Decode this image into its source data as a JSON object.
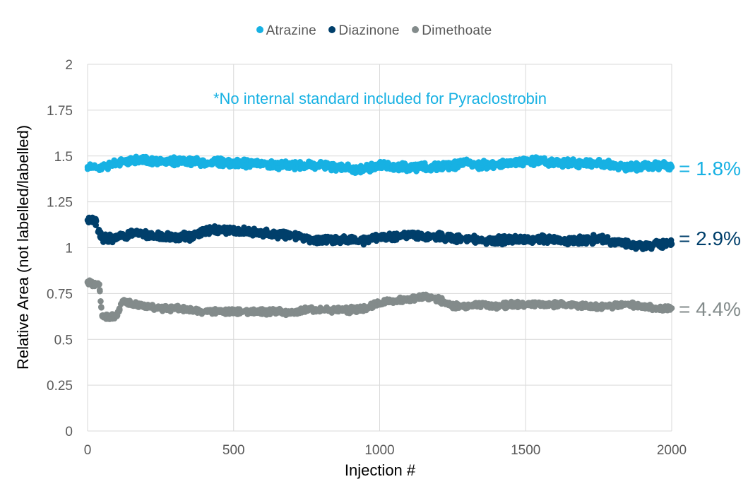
{
  "chart_data": {
    "type": "scatter",
    "xlabel": "Injection #",
    "ylabel": "Relative Area (not labelled/labelled)",
    "xlim": [
      0,
      2000
    ],
    "ylim": [
      0,
      2
    ],
    "x_ticks": [
      "0",
      "500",
      "1000",
      "1500",
      "2000"
    ],
    "y_ticks": [
      "0",
      "0.25",
      "0.5",
      "0.75",
      "1",
      "1.25",
      "1.5",
      "1.75",
      "2"
    ],
    "grid": "vertical and horizontal gridlines",
    "legend_position": "top",
    "annotation": "*No internal standard included for Pyraclostrobin",
    "series": [
      {
        "name": "Atrazine",
        "color": "#17b1e3",
        "rsd_label": "= 1.8%",
        "x": [
          0,
          50,
          100,
          150,
          200,
          250,
          300,
          350,
          400,
          450,
          500,
          550,
          600,
          650,
          700,
          750,
          800,
          850,
          900,
          950,
          1000,
          1050,
          1100,
          1150,
          1200,
          1250,
          1300,
          1350,
          1400,
          1450,
          1500,
          1550,
          1600,
          1650,
          1700,
          1750,
          1800,
          1850,
          1900,
          1950,
          2000
        ],
        "y": [
          1.44,
          1.44,
          1.46,
          1.48,
          1.48,
          1.47,
          1.47,
          1.47,
          1.46,
          1.47,
          1.46,
          1.46,
          1.46,
          1.45,
          1.45,
          1.45,
          1.45,
          1.44,
          1.43,
          1.43,
          1.45,
          1.44,
          1.44,
          1.44,
          1.44,
          1.45,
          1.46,
          1.45,
          1.45,
          1.46,
          1.47,
          1.47,
          1.46,
          1.46,
          1.46,
          1.46,
          1.45,
          1.44,
          1.44,
          1.45,
          1.44
        ]
      },
      {
        "name": "Diazinone",
        "color": "#003f6b",
        "rsd_label": "= 2.9%",
        "x": [
          0,
          25,
          50,
          100,
          150,
          200,
          250,
          300,
          350,
          400,
          450,
          500,
          550,
          600,
          650,
          700,
          750,
          800,
          850,
          900,
          950,
          1000,
          1050,
          1100,
          1150,
          1200,
          1250,
          1300,
          1350,
          1400,
          1450,
          1500,
          1550,
          1600,
          1650,
          1700,
          1750,
          1800,
          1850,
          1900,
          1950,
          2000
        ],
        "y": [
          1.15,
          1.15,
          1.05,
          1.05,
          1.08,
          1.07,
          1.06,
          1.06,
          1.06,
          1.09,
          1.1,
          1.09,
          1.09,
          1.08,
          1.07,
          1.07,
          1.05,
          1.04,
          1.04,
          1.04,
          1.04,
          1.06,
          1.06,
          1.07,
          1.06,
          1.06,
          1.05,
          1.05,
          1.04,
          1.04,
          1.04,
          1.04,
          1.05,
          1.04,
          1.04,
          1.04,
          1.05,
          1.03,
          1.02,
          1.01,
          1.02,
          1.02
        ]
      },
      {
        "name": "Dimethoate",
        "color": "#838b8b",
        "rsd_label": "= 4.4%",
        "x": [
          0,
          20,
          40,
          50,
          75,
          100,
          120,
          150,
          200,
          250,
          300,
          350,
          400,
          450,
          500,
          550,
          600,
          650,
          700,
          750,
          800,
          850,
          900,
          950,
          1000,
          1050,
          1100,
          1150,
          1200,
          1250,
          1300,
          1350,
          1400,
          1450,
          1500,
          1550,
          1600,
          1650,
          1700,
          1750,
          1800,
          1850,
          1900,
          1950,
          2000
        ],
        "y": [
          0.81,
          0.8,
          0.8,
          0.63,
          0.62,
          0.63,
          0.71,
          0.69,
          0.68,
          0.67,
          0.67,
          0.66,
          0.65,
          0.65,
          0.65,
          0.65,
          0.65,
          0.65,
          0.65,
          0.66,
          0.66,
          0.66,
          0.66,
          0.67,
          0.7,
          0.71,
          0.72,
          0.73,
          0.72,
          0.68,
          0.68,
          0.69,
          0.68,
          0.69,
          0.69,
          0.69,
          0.69,
          0.69,
          0.68,
          0.68,
          0.68,
          0.69,
          0.68,
          0.67,
          0.67
        ]
      }
    ]
  }
}
